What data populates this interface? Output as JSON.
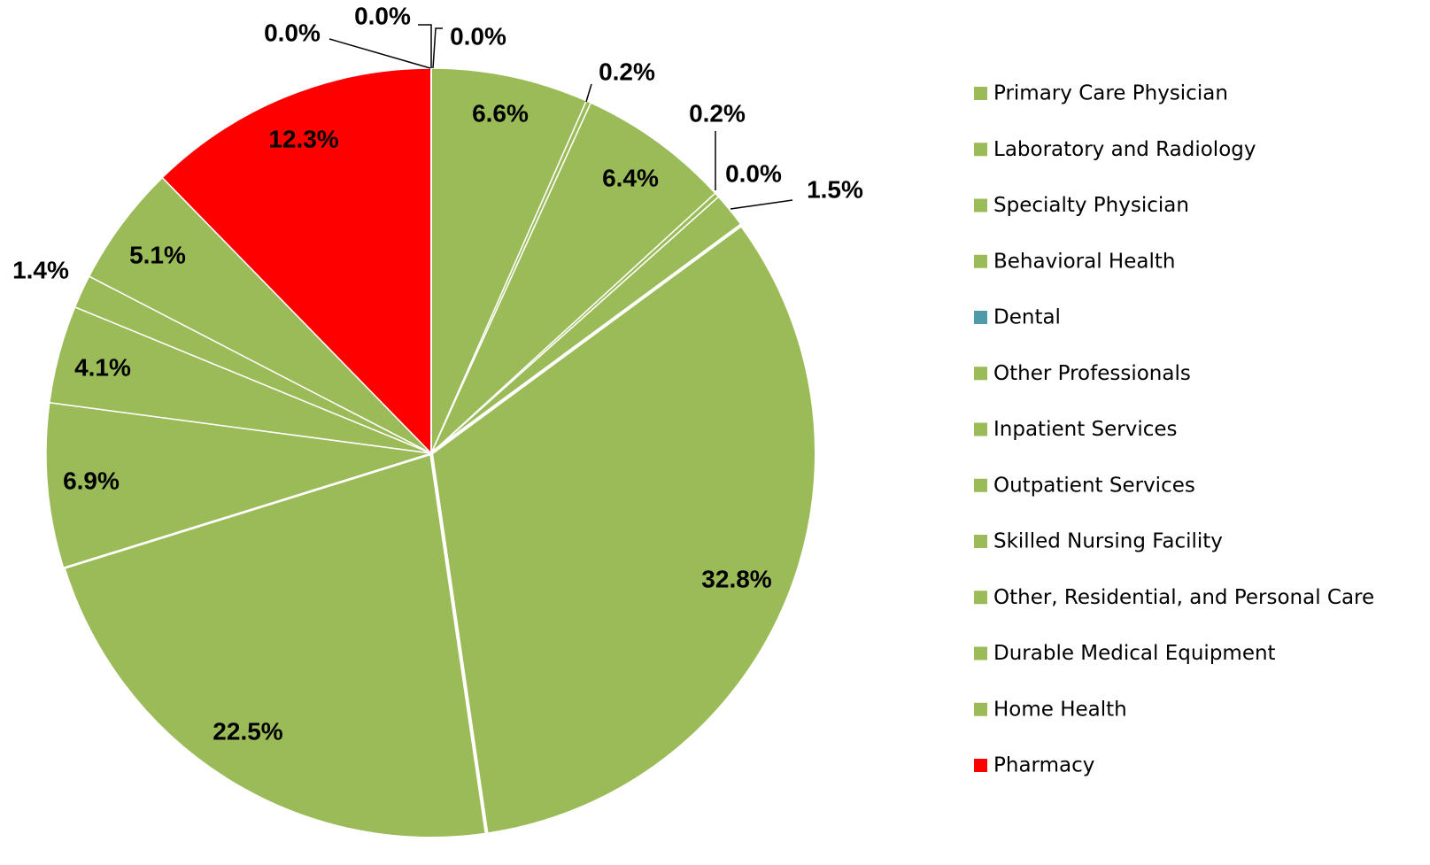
{
  "chart_data": {
    "type": "pie",
    "categories": [
      "Primary Care Physician",
      "Laboratory and Radiology",
      "Specialty Physician",
      "Behavioral Health",
      "Dental",
      "Other Professionals",
      "Inpatient Services",
      "Outpatient Services",
      "Skilled Nursing Facility",
      "Other, Residential, and Personal Care",
      "Durable Medical Equipment",
      "Home Health",
      "Pharmacy",
      null,
      null,
      null
    ],
    "values": [
      6.6,
      0.2,
      6.4,
      0.2,
      0.0,
      1.5,
      32.8,
      22.5,
      6.9,
      4.1,
      1.4,
      5.1,
      12.3,
      0.0,
      0.0,
      0.0
    ],
    "value_labels": [
      "6.6%",
      "0.2%",
      "6.4%",
      "0.2%",
      "0.0%",
      "1.5%",
      "32.8%",
      "22.5%",
      "6.9%",
      "4.1%",
      "1.4%",
      "5.1%",
      "12.3%",
      "0.0%",
      "0.0%",
      "0.0%"
    ],
    "colors": [
      "#9bbb59",
      "#9bbb59",
      "#9bbb59",
      "#9bbb59",
      "#4f9aa8",
      "#9bbb59",
      "#9bbb59",
      "#9bbb59",
      "#9bbb59",
      "#9bbb59",
      "#9bbb59",
      "#9bbb59",
      "#ff0000",
      "#9bbb59",
      "#9bbb59",
      "#9bbb59"
    ],
    "legend": "right"
  }
}
